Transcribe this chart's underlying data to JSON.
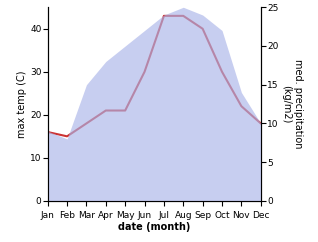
{
  "months": [
    "Jan",
    "Feb",
    "Mar",
    "Apr",
    "May",
    "Jun",
    "Jul",
    "Aug",
    "Sep",
    "Oct",
    "Nov",
    "Dec"
  ],
  "temp": [
    16,
    15,
    18,
    21,
    21,
    30,
    43,
    43,
    40,
    30,
    22,
    18
  ],
  "precip": [
    9,
    8,
    15,
    18,
    20,
    22,
    24,
    25,
    24,
    22,
    14,
    10
  ],
  "temp_color": "#cc3333",
  "precip_color": "#aab4e8",
  "background": "#ffffff",
  "ylim_temp": [
    0,
    45
  ],
  "ylim_precip": [
    0,
    25
  ],
  "ylabel_left": "max temp (C)",
  "ylabel_right": "med. precipitation\n(kg/m2)",
  "xlabel": "date (month)",
  "label_fontsize": 7,
  "tick_fontsize": 6.5
}
